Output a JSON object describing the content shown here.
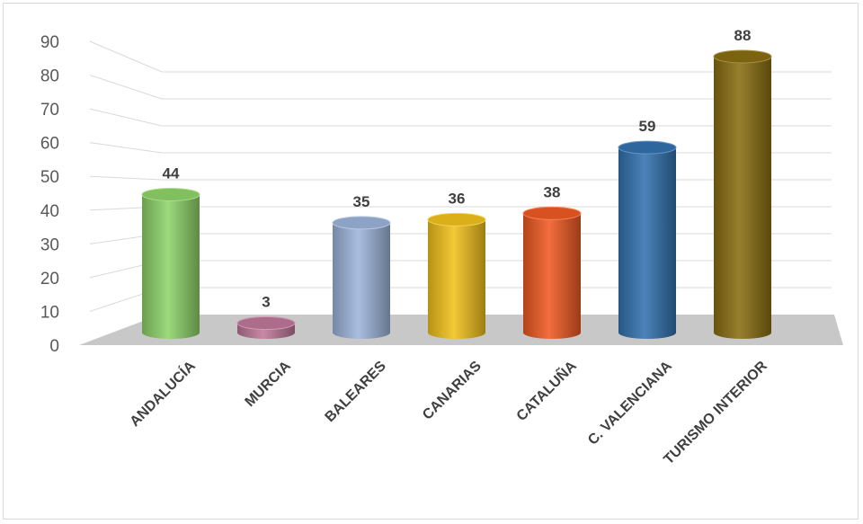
{
  "chart_data": {
    "type": "bar",
    "style": "3d-cylinder",
    "categories": [
      "ANDALUCÍA",
      "MURCIA",
      "BALEARES",
      "CANARIAS",
      "CATALUÑA",
      "C. VALENCIANA",
      "TURISMO INTERIOR"
    ],
    "values": [
      44,
      3,
      35,
      36,
      38,
      59,
      88
    ],
    "colors": [
      "#8fd46a",
      "#c0789a",
      "#9db5dc",
      "#f2c21c",
      "#f05a23",
      "#3272b0",
      "#8a6e12"
    ],
    "ylim": [
      0,
      90
    ],
    "yticks": [
      "0",
      "10",
      "20",
      "30",
      "40",
      "50",
      "60",
      "70",
      "80",
      "90"
    ],
    "grid": true,
    "legend": "none",
    "floor_color": "#c8c8c8"
  }
}
